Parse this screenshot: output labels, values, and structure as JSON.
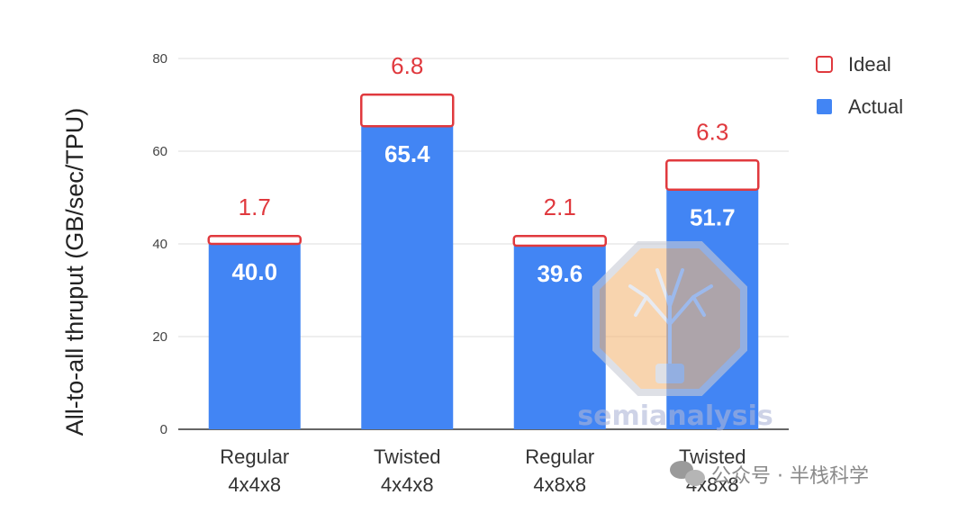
{
  "chart_data": {
    "type": "bar",
    "stacked": true,
    "ylabel": "All-to-all thruput (GB/sec/TPU)",
    "ylim": [
      0,
      80
    ],
    "yticks": [
      0,
      20,
      40,
      60,
      80
    ],
    "grid": true,
    "legend_position": "top-right",
    "categories": [
      [
        "Regular",
        "4x4x8"
      ],
      [
        "Twisted",
        "4x4x8"
      ],
      [
        "Regular",
        "4x8x8"
      ],
      [
        "Twisted",
        "4x8x8"
      ]
    ],
    "series": [
      {
        "name": "Actual",
        "values": [
          40.0,
          65.4,
          39.6,
          51.7
        ],
        "labels": [
          "40.0",
          "65.4",
          "39.6",
          "51.7"
        ],
        "color": "#4285f4"
      },
      {
        "name": "Ideal",
        "values": [
          1.7,
          6.8,
          2.1,
          6.3
        ],
        "labels": [
          "1.7",
          "6.8",
          "2.1",
          "6.3"
        ],
        "color": "#e0393e"
      }
    ]
  },
  "watermarks": {
    "brand": "semianalysis",
    "brand_icon": "tree-circuit-icon",
    "account": "公众号 · 半栈科学",
    "account_icon": "wechat-icon"
  }
}
